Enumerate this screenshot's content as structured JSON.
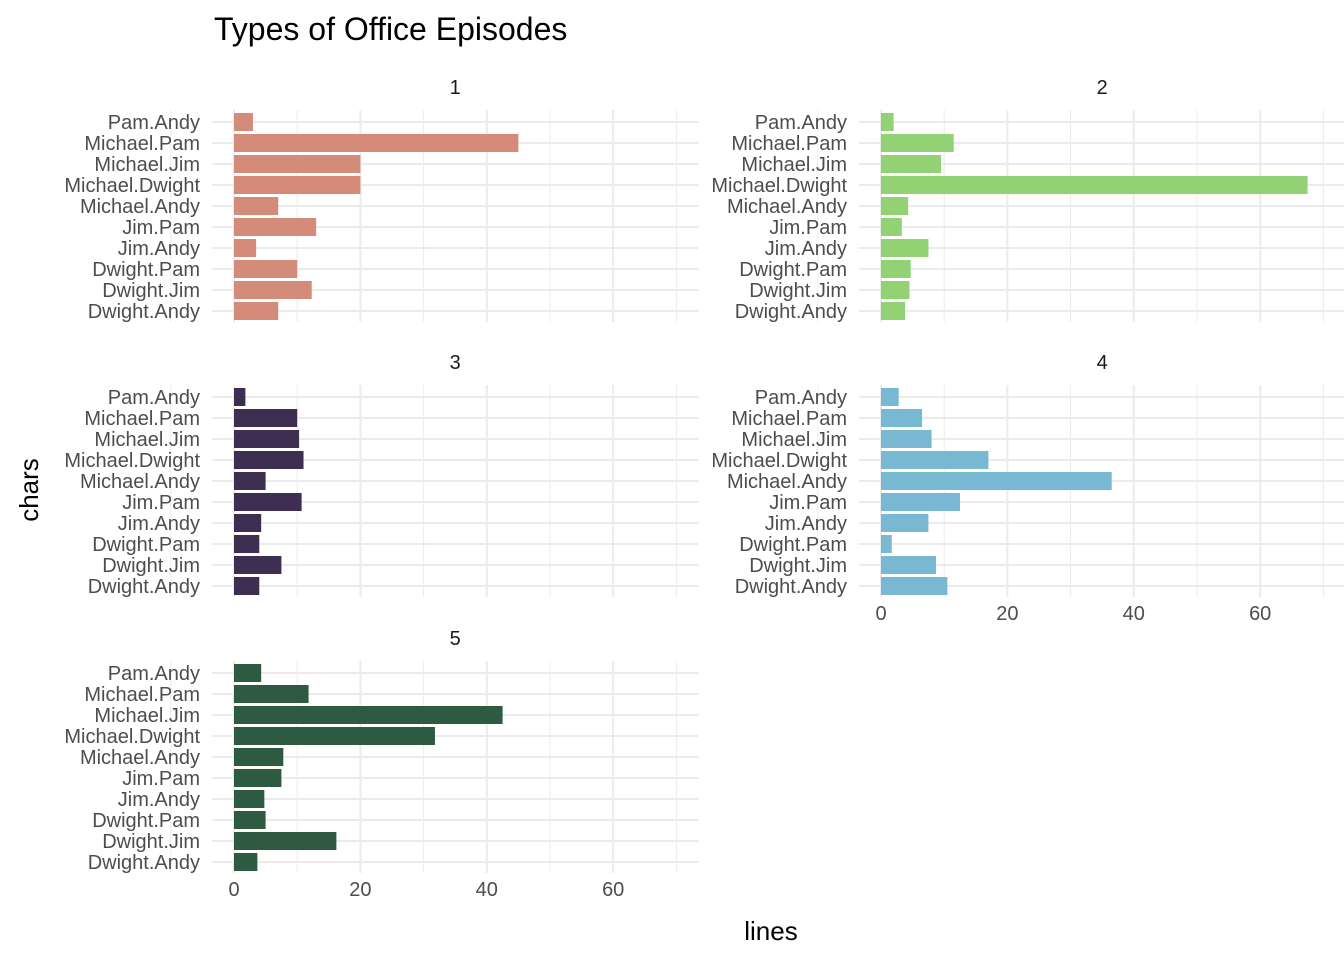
{
  "chart_data": {
    "type": "bar",
    "orientation": "horizontal",
    "title": "Types of Office Episodes",
    "xlabel": "lines",
    "ylabel": "chars",
    "xlim": [
      0,
      70
    ],
    "x_ticks": [
      0,
      20,
      40,
      60
    ],
    "grid": true,
    "categories": [
      "Pam.Andy",
      "Michael.Pam",
      "Michael.Jim",
      "Michael.Dwight",
      "Michael.Andy",
      "Jim.Pam",
      "Jim.Andy",
      "Dwight.Pam",
      "Dwight.Jim",
      "Dwight.Andy"
    ],
    "panels": [
      {
        "label": "1",
        "color": "#d48b7a",
        "values": [
          3,
          45,
          20,
          20,
          7,
          13,
          3.5,
          10,
          12.3,
          7
        ]
      },
      {
        "label": "2",
        "color": "#92d275",
        "values": [
          2,
          11.5,
          9.5,
          67.5,
          4.3,
          3.3,
          7.5,
          4.7,
          4.5,
          3.8
        ]
      },
      {
        "label": "3",
        "color": "#3d2e52",
        "values": [
          1.8,
          10,
          10.3,
          11,
          5,
          10.7,
          4.3,
          4,
          7.5,
          4
        ]
      },
      {
        "label": "4",
        "color": "#78b8d3",
        "values": [
          2.8,
          6.5,
          8,
          17,
          36.5,
          12.5,
          7.5,
          1.7,
          8.7,
          10.5
        ]
      },
      {
        "label": "5",
        "color": "#2d5a40",
        "values": [
          4.3,
          11.8,
          42.5,
          31.8,
          7.8,
          7.5,
          4.8,
          5,
          16.2,
          3.7
        ]
      }
    ]
  }
}
